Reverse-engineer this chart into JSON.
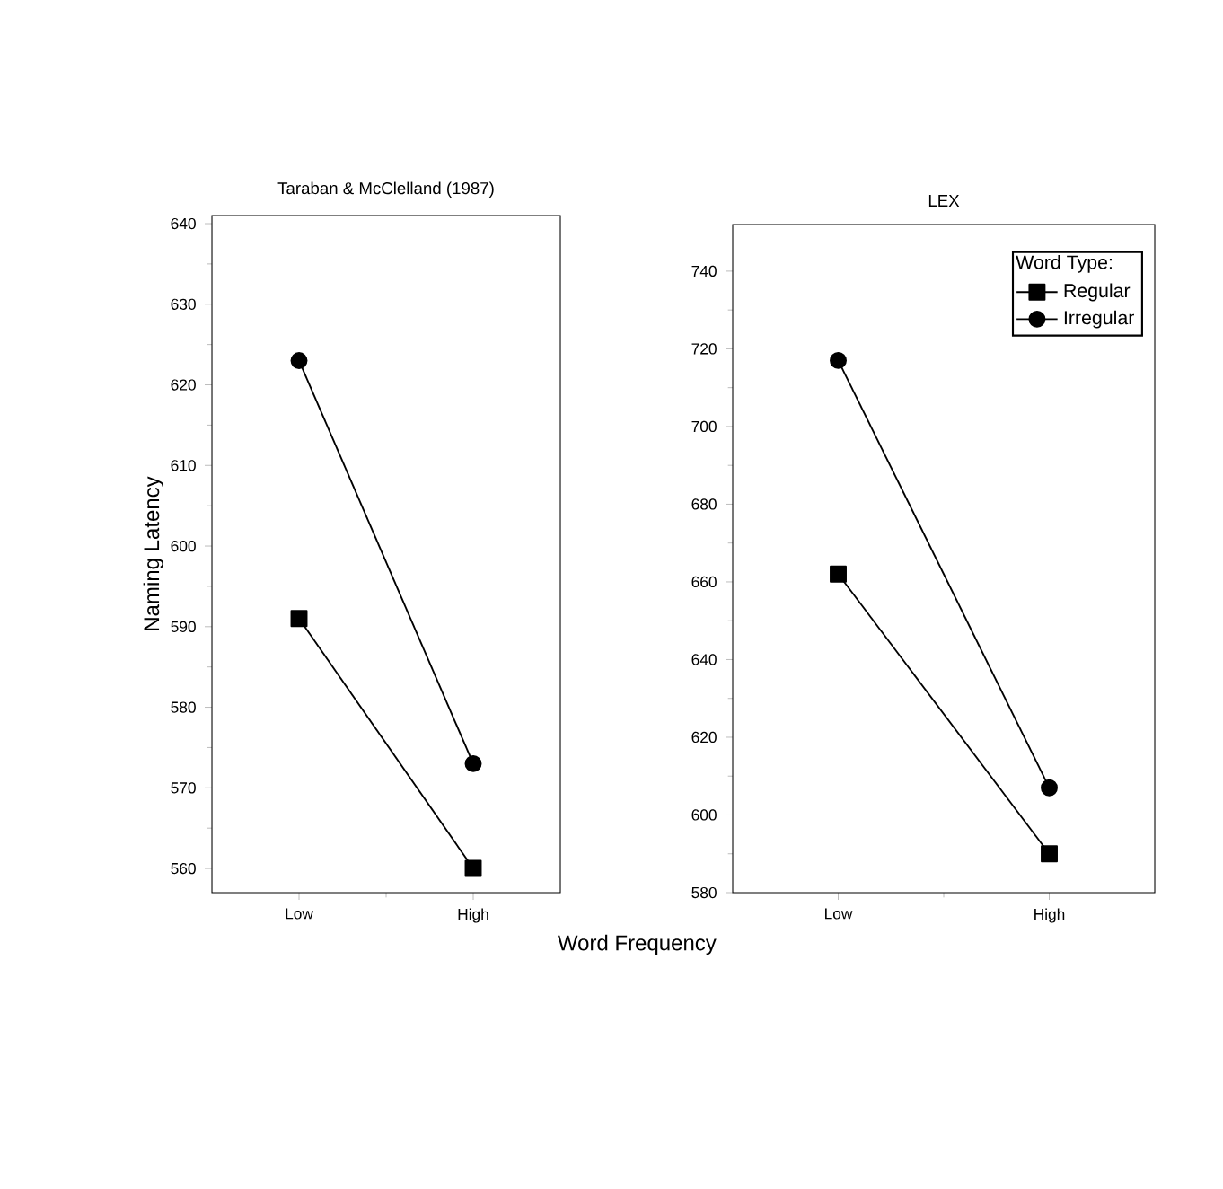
{
  "chart_data": [
    {
      "type": "line",
      "title": "Taraban & McClelland (1987)",
      "xlabel": "Word Frequency",
      "ylabel": "Naming Latency",
      "categories": [
        "Low",
        "High"
      ],
      "series": [
        {
          "color": "#000000",
          "marker": "square",
          "values": [
            591,
            560
          ]
        },
        {
          "color": "#000000",
          "marker": "circle",
          "values": [
            623,
            573
          ]
        }
      ],
      "ylim": [
        557,
        641
      ],
      "yticks": [
        560,
        570,
        580,
        590,
        600,
        610,
        620,
        630,
        640
      ],
      "grid": false,
      "legend": false
    },
    {
      "type": "line",
      "title": "LEX",
      "categories": [
        "Low",
        "High"
      ],
      "legend_title": "Word Type:",
      "series": [
        {
          "name": "Regular",
          "color": "#000000",
          "marker": "square",
          "values": [
            662,
            590
          ]
        },
        {
          "name": "Irregular",
          "color": "#000000",
          "marker": "circle",
          "values": [
            717,
            607
          ]
        }
      ],
      "ylim": [
        580,
        752
      ],
      "yticks": [
        580,
        600,
        620,
        640,
        660,
        680,
        700,
        720,
        740
      ],
      "grid": false,
      "legend": "top right"
    }
  ]
}
